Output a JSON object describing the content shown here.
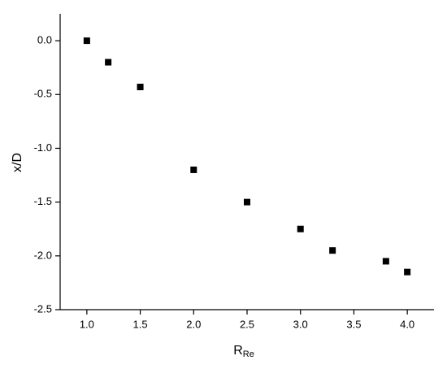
{
  "chart_data": {
    "type": "scatter",
    "x": [
      1.0,
      1.2,
      1.5,
      2.0,
      2.5,
      3.0,
      3.3,
      3.8,
      4.0
    ],
    "values": [
      0.0,
      -0.2,
      -0.43,
      -1.2,
      -1.5,
      -1.75,
      -1.95,
      -2.05,
      -2.15
    ],
    "color": "#000000",
    "xlabel": "R",
    "xlabel_subscript": "Re",
    "ylabel": "x/D",
    "xlim": [
      0.75,
      4.25
    ],
    "ylim": [
      -2.5,
      0.25
    ],
    "xticks": [
      {
        "value": 1,
        "label": "1.0"
      },
      1.5,
      {
        "value": 2,
        "label": "2.0"
      },
      2.5,
      {
        "value": 3,
        "label": "3.0"
      },
      3.5,
      {
        "value": 4,
        "label": "4.0"
      }
    ],
    "yticks": [
      {
        "value": -2.5,
        "label": "-2.5"
      },
      {
        "value": -2,
        "label": "-2.0"
      },
      -1.5,
      {
        "value": -1,
        "label": "-1.0"
      },
      -0.5,
      {
        "value": 0,
        "label": "0.0"
      }
    ],
    "grid": false
  }
}
